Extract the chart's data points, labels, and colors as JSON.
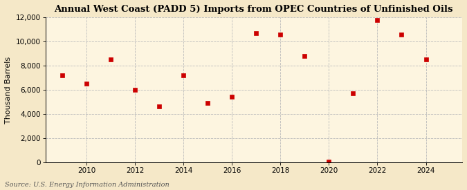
{
  "title": "Annual West Coast (PADD 5) Imports from OPEC Countries of Unfinished Oils",
  "ylabel": "Thousand Barrels",
  "source": "Source: U.S. Energy Information Administration",
  "background_color": "#f5e8c8",
  "plot_background_color": "#fdf5e0",
  "years": [
    2009,
    2010,
    2011,
    2012,
    2013,
    2014,
    2015,
    2016,
    2017,
    2018,
    2019,
    2020,
    2021,
    2022,
    2023,
    2024
  ],
  "values": [
    7200,
    6500,
    8500,
    6000,
    4600,
    7200,
    4900,
    5400,
    10700,
    10600,
    8800,
    50,
    5700,
    11800,
    10600,
    8500
  ],
  "marker_color": "#cc0000",
  "marker_size": 5,
  "marker_style": "s",
  "xlim": [
    2008.3,
    2025.5
  ],
  "ylim": [
    0,
    12000
  ],
  "yticks": [
    0,
    2000,
    4000,
    6000,
    8000,
    10000,
    12000
  ],
  "xticks": [
    2010,
    2012,
    2014,
    2016,
    2018,
    2020,
    2022,
    2024
  ],
  "grid_color": "#bbbbbb",
  "grid_style": "--",
  "title_fontsize": 9.5,
  "label_fontsize": 8,
  "tick_fontsize": 7.5,
  "source_fontsize": 7
}
